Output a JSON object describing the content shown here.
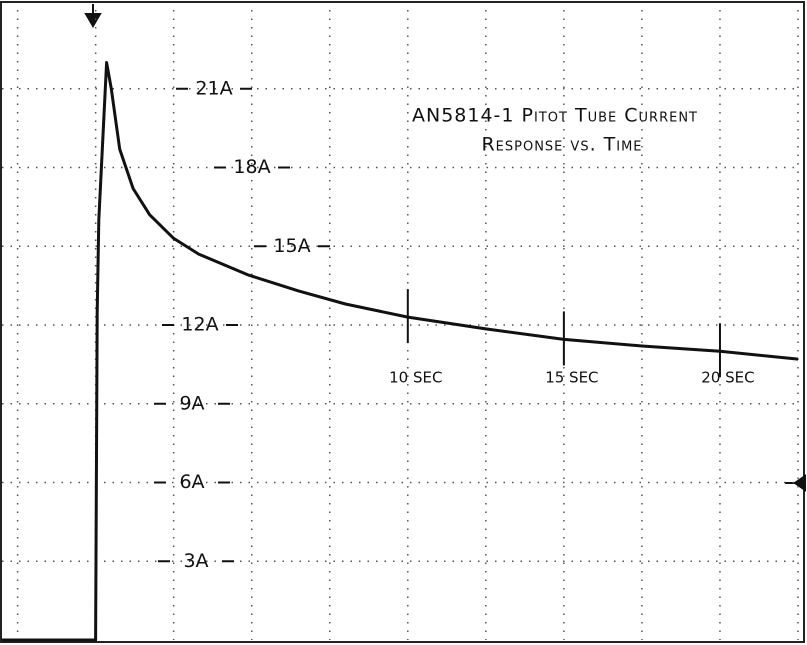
{
  "chart_data": {
    "type": "line",
    "title": "AN5814-1 Pitot Tube Current",
    "subtitle": "Response vs. Time",
    "x": [
      -3,
      0,
      0.05,
      0.1,
      0.35,
      0.5,
      0.77,
      1.2,
      1.73,
      2.5,
      3.3,
      4.9,
      6.5,
      8,
      10,
      12.5,
      15,
      17.5,
      20,
      22.5
    ],
    "series": [
      {
        "name": "Current",
        "color": "#111111",
        "values": [
          0,
          0,
          12.5,
          16,
          22,
          21,
          18.7,
          17.2,
          16.2,
          15.3,
          14.7,
          13.9,
          13.3,
          12.8,
          12.3,
          11.85,
          11.45,
          11.2,
          11.0,
          10.7
        ]
      }
    ],
    "xlim": [
      -3,
      22.5
    ],
    "ylim": [
      0,
      24
    ],
    "xticks": [
      {
        "value": 10,
        "label": "10 SEC"
      },
      {
        "value": 15,
        "label": "15 SEC"
      },
      {
        "value": 20,
        "label": "20 SEC"
      }
    ],
    "yticks": [
      {
        "value": 3,
        "label": "3A"
      },
      {
        "value": 6,
        "label": "6A"
      },
      {
        "value": 9,
        "label": "9A"
      },
      {
        "value": 12,
        "label": "12A"
      },
      {
        "value": 15,
        "label": "15A"
      },
      {
        "value": 18,
        "label": "18A"
      },
      {
        "value": 21,
        "label": "21A"
      }
    ],
    "xgrid": [
      -2.5,
      0,
      2.5,
      5,
      7.5,
      10,
      12.5,
      15,
      17.5,
      20,
      22.5
    ],
    "grid": true
  }
}
